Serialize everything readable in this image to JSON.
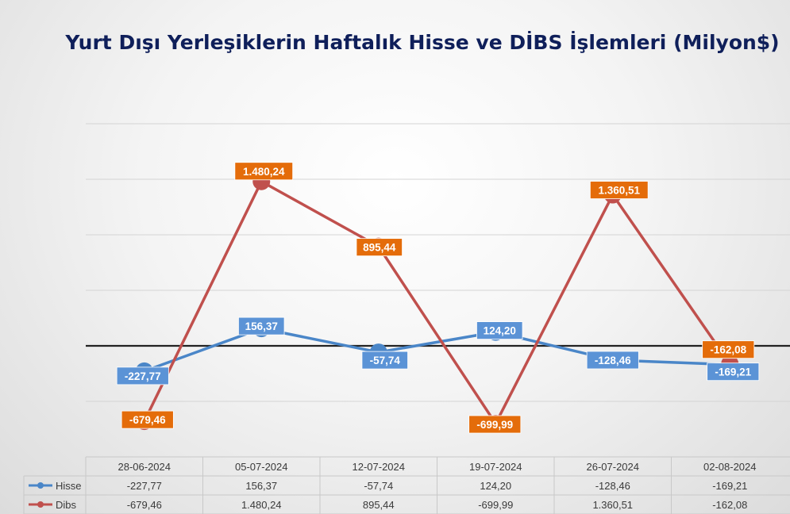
{
  "chart_data": {
    "type": "line",
    "title": "Yurt Dışı Yerleşiklerin Haftalık Hisse ve DİBS İşlemleri (Milyon$)",
    "categories": [
      "28-06-2024",
      "05-07-2024",
      "12-07-2024",
      "19-07-2024",
      "26-07-2024",
      "02-08-2024"
    ],
    "series": [
      {
        "name": "Hisse",
        "color": "#4a86c8",
        "label_color": "#5b93d6",
        "values": [
          -227.77,
          156.37,
          -57.74,
          124.2,
          -128.46,
          -169.21
        ],
        "labels": [
          "-227,77",
          "156,37",
          "-57,74",
          "124,20",
          "-128,46",
          "-169,21"
        ]
      },
      {
        "name": "Dibs",
        "color": "#c0504d",
        "label_color": "#e46c0a",
        "values": [
          -679.46,
          1480.24,
          895.44,
          -699.99,
          1360.51,
          -162.08
        ],
        "labels": [
          "-679,46",
          "1.480,24",
          "895,44",
          "-699,99",
          "1.360,51",
          "-162,08"
        ]
      }
    ],
    "ylim": [
      -1000,
      2000
    ],
    "grid": true,
    "legend": "data-table"
  }
}
